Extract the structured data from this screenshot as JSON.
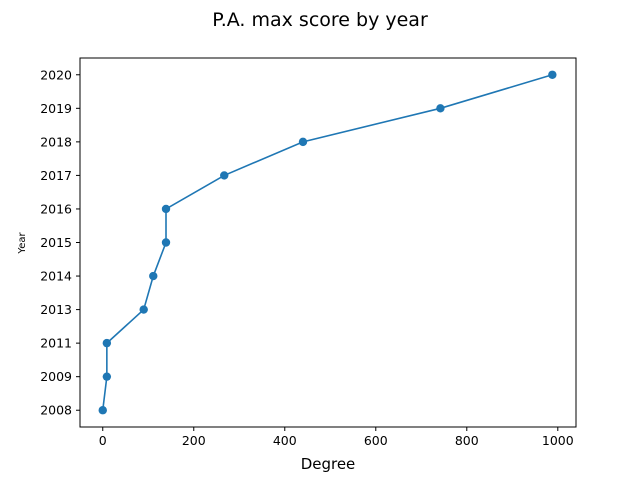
{
  "chart_data": {
    "type": "line",
    "title": "P.A. max score by year",
    "xlabel": "Degree",
    "ylabel": "Year",
    "x_ticks": [
      "0",
      "200",
      "400",
      "600",
      "800",
      "1000"
    ],
    "y_ticks": [
      "2008",
      "2009",
      "2011",
      "2013",
      "2014",
      "2015",
      "2016",
      "2017",
      "2018",
      "2019",
      "2020"
    ],
    "xlim": [
      -50,
      1040
    ],
    "series": [
      {
        "x": [
          0,
          9,
          9,
          90,
          111,
          139,
          139,
          267,
          440,
          742,
          988
        ],
        "y": [
          "2008",
          "2009",
          "2011",
          "2013",
          "2014",
          "2015",
          "2016",
          "2017",
          "2018",
          "2019",
          "2020"
        ]
      }
    ],
    "color": "#1f77b4",
    "marker": "circle",
    "grid": false,
    "legend": false
  }
}
